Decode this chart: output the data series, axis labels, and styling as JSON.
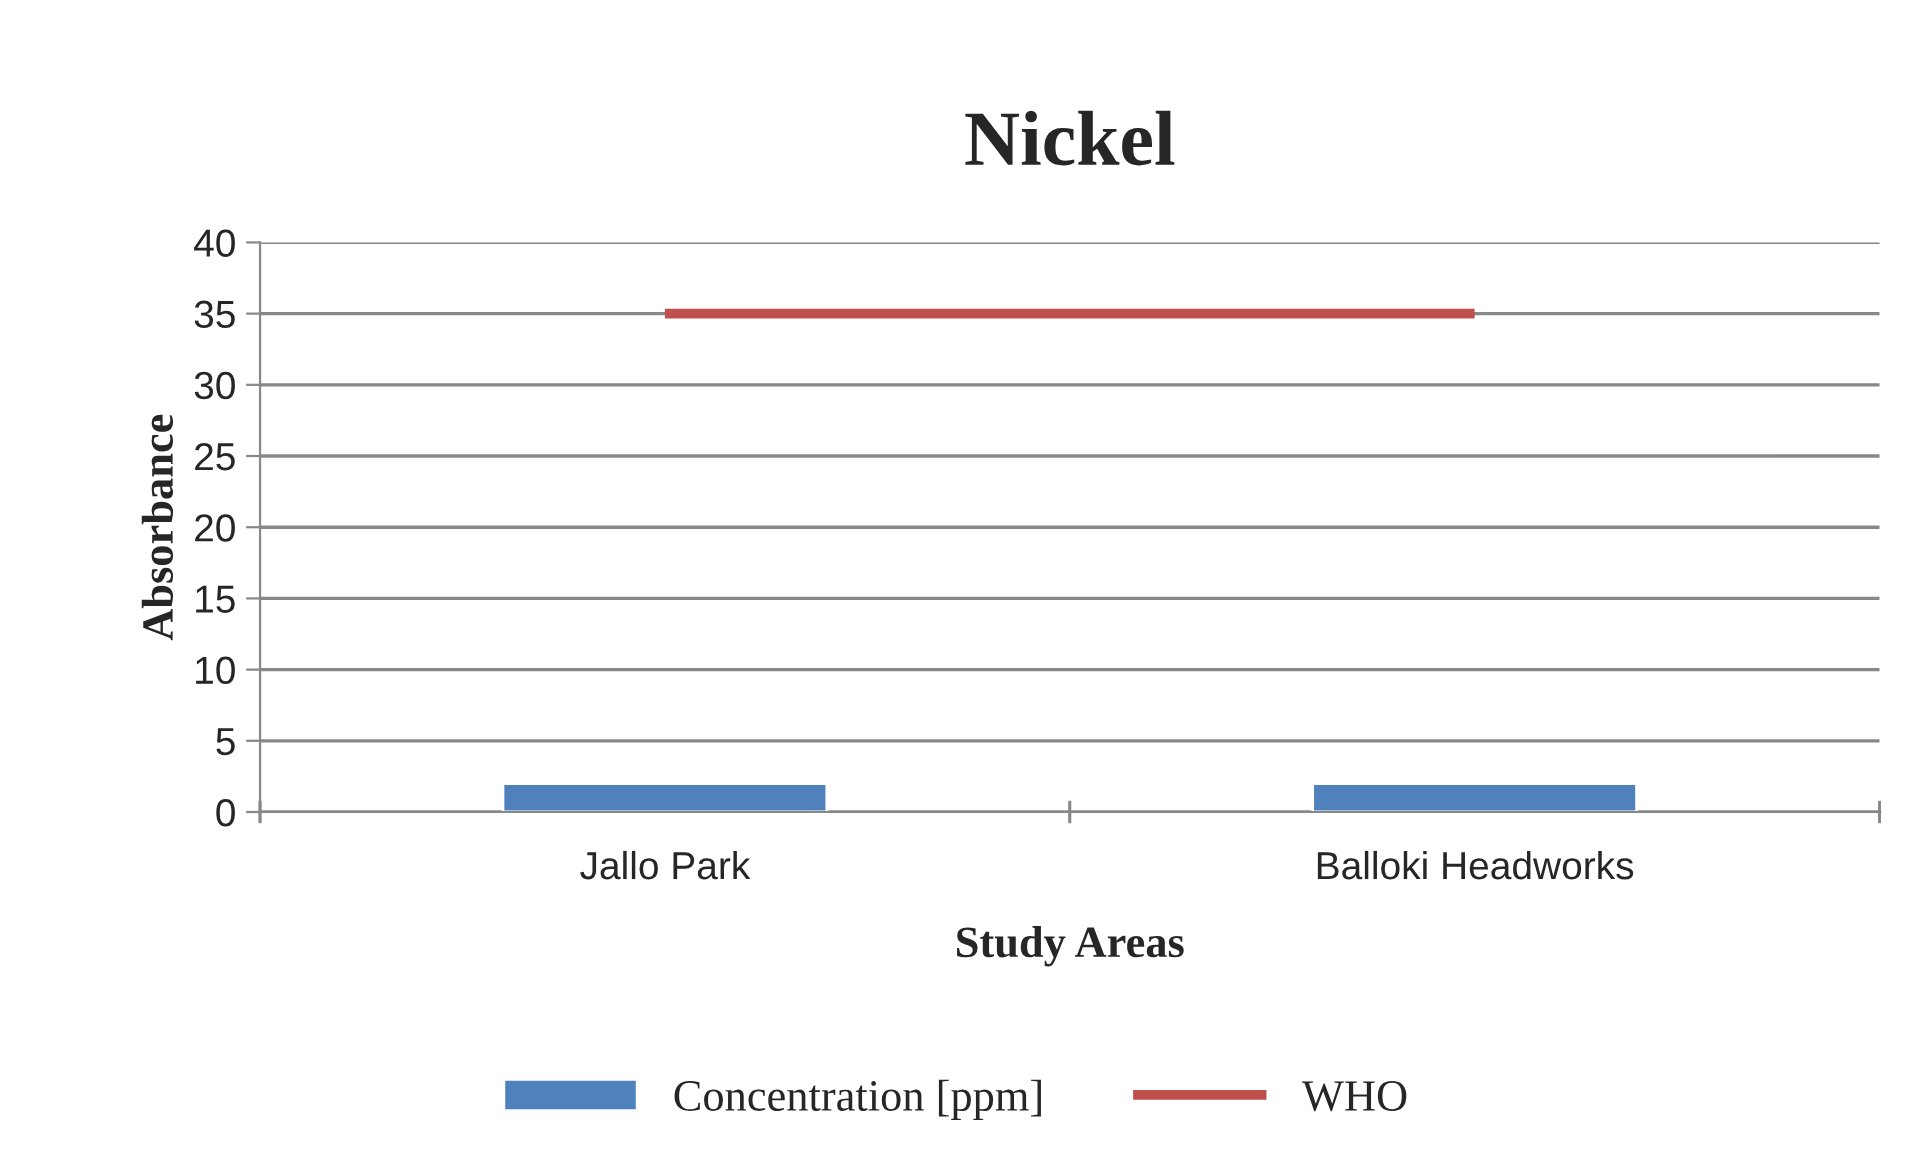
{
  "chart_data": {
    "type": "bar",
    "title": "Nickel",
    "xlabel": "Study Areas",
    "ylabel": "Absorbance",
    "categories": [
      "Jallo Park",
      "Balloki Headworks"
    ],
    "series": [
      {
        "name": "Concentration [ppm]",
        "color": "#4f81bd",
        "values": [
          2,
          2
        ]
      },
      {
        "name": "WHO",
        "type": "line",
        "color": "#c0504d",
        "values": [
          35,
          35
        ]
      }
    ],
    "ylim": [
      0,
      40
    ],
    "yticks": [
      0,
      5,
      10,
      15,
      20,
      25,
      30,
      35,
      40
    ],
    "grid": "y",
    "legend": "bottom"
  }
}
